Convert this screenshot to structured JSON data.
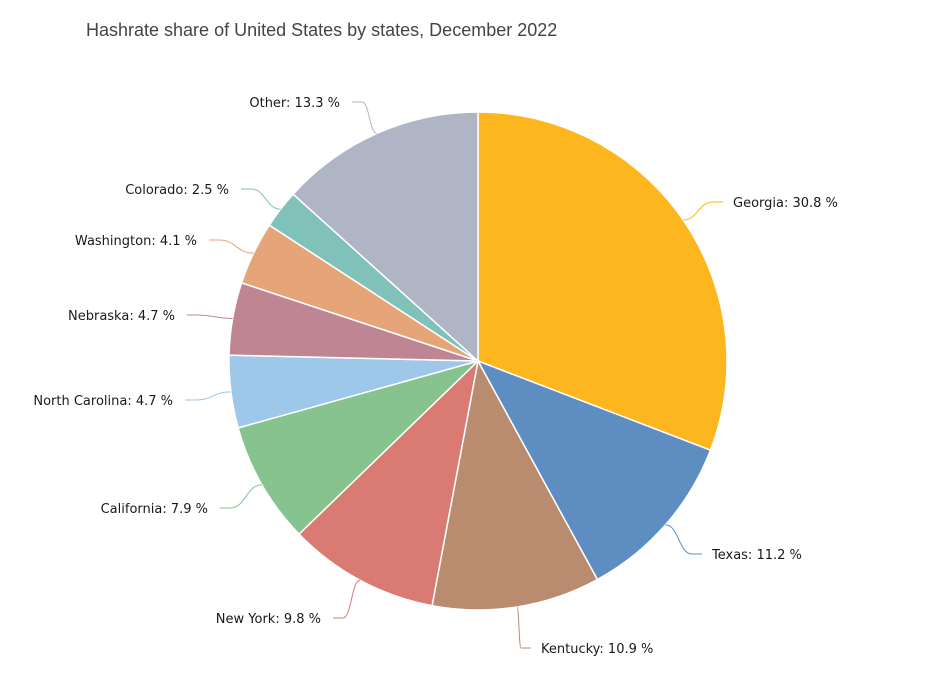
{
  "chart_data": {
    "type": "pie",
    "title": "Hashrate share of United States by states, December 2022",
    "unit": "%",
    "slices": [
      {
        "label": "Georgia",
        "value": 30.8,
        "display": "Georgia: 30.8 %",
        "color": "#fdb61d"
      },
      {
        "label": "Texas",
        "value": 11.2,
        "display": "Texas: 11.2 %",
        "color": "#5e8dc2"
      },
      {
        "label": "Kentucky",
        "value": 10.9,
        "display": "Kentucky: 10.9 %",
        "color": "#b98c6f"
      },
      {
        "label": "New York",
        "value": 9.8,
        "display": "New York: 9.8 %",
        "color": "#d97a73"
      },
      {
        "label": "California",
        "value": 7.9,
        "display": "California: 7.9 %",
        "color": "#86c38f"
      },
      {
        "label": "North Carolina",
        "value": 4.7,
        "display": "North Carolina: 4.7 %",
        "color": "#9ec8e9"
      },
      {
        "label": "Nebraska",
        "value": 4.7,
        "display": "Nebraska: 4.7 %",
        "color": "#bf8593"
      },
      {
        "label": "Washington",
        "value": 4.1,
        "display": "Washington: 4.1 %",
        "color": "#e5a579"
      },
      {
        "label": "Colorado",
        "value": 2.5,
        "display": "Colorado: 2.5 %",
        "color": "#80c2b9"
      },
      {
        "label": "Other",
        "value": 13.3,
        "display": "Other: 13.3 %",
        "color": "#afb5c4"
      }
    ]
  }
}
